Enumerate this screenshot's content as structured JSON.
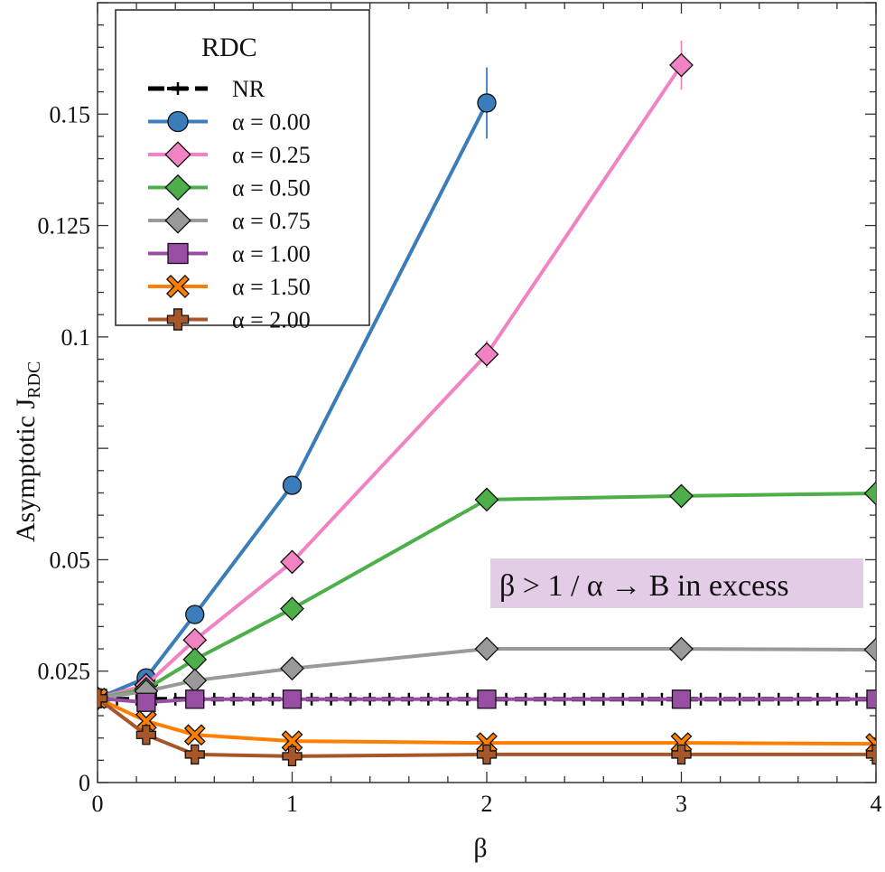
{
  "chart_data": {
    "type": "line",
    "title": "",
    "xlabel": "β",
    "ylabel_main": "Asymptotic  J",
    "ylabel_sub": "RDC",
    "xlim": [
      0,
      4
    ],
    "ylim": [
      0,
      0.175
    ],
    "x_ticks": [
      0,
      1,
      2,
      3,
      4
    ],
    "x_tick_labels": [
      "0",
      "1",
      "2",
      "3",
      "4"
    ],
    "x_minor_step": 0.2,
    "y_ticks": [
      0,
      0.025,
      0.05,
      0.1,
      0.125,
      0.15
    ],
    "y_tick_labels": [
      "0",
      "0.025",
      "0.05",
      "0.1",
      "0.125",
      "0.15"
    ],
    "y_major_step": 0.025,
    "y_minor_step": 0.005,
    "grid": false,
    "legend": {
      "title": "RDC",
      "placement": "top-left"
    },
    "annotation": {
      "text": "β > 1 / α → B in excess",
      "background": "#e3cde6",
      "placement": "center-right"
    },
    "series": [
      {
        "name": "NR",
        "color": "#000000",
        "marker": "plus",
        "dashed": true,
        "x": [
          0,
          0.1,
          0.2,
          0.3,
          0.4,
          0.5,
          0.6,
          0.7,
          0.8,
          0.9,
          1.0,
          1.1,
          1.2,
          1.3,
          1.4,
          1.5,
          1.6,
          1.7,
          1.8,
          1.9,
          2.0,
          2.1,
          2.2,
          2.3,
          2.4,
          2.5,
          2.6,
          2.7,
          2.8,
          2.9,
          3.0,
          3.1,
          3.2,
          3.3,
          3.4,
          3.5,
          3.6,
          3.7,
          3.8,
          3.9,
          4.0
        ],
        "y": [
          0.0187,
          0.0187,
          0.0187,
          0.0187,
          0.0187,
          0.0187,
          0.0187,
          0.0187,
          0.0187,
          0.0187,
          0.0187,
          0.0187,
          0.0187,
          0.0187,
          0.0187,
          0.0187,
          0.0187,
          0.0187,
          0.0187,
          0.0187,
          0.0187,
          0.0187,
          0.0187,
          0.0187,
          0.0187,
          0.0187,
          0.0187,
          0.0187,
          0.0187,
          0.0187,
          0.0187,
          0.0187,
          0.0187,
          0.0187,
          0.0187,
          0.0187,
          0.0187,
          0.0187,
          0.0187,
          0.0187,
          0.0187
        ]
      },
      {
        "name": "α = 0.00",
        "color": "#3a7dba",
        "marker": "circle",
        "x": [
          0,
          0.25,
          0.5,
          1,
          2
        ],
        "y": [
          0.0189,
          0.0235,
          0.0377,
          0.0667,
          0.1525
        ],
        "err": [
          0,
          0.0005,
          0.0008,
          0.0012,
          0.008
        ]
      },
      {
        "name": "α = 0.25",
        "color": "#f283c3",
        "marker": "diamond",
        "x": [
          0,
          0.25,
          0.5,
          1,
          2,
          3
        ],
        "y": [
          0.0189,
          0.0219,
          0.032,
          0.0495,
          0.0961,
          0.161
        ],
        "err": [
          0,
          0.0004,
          0.0006,
          0.001,
          0.003,
          0.0055
        ]
      },
      {
        "name": "α = 0.50",
        "color": "#4daf4a",
        "marker": "diamond",
        "x": [
          0,
          0.25,
          0.5,
          1,
          2,
          3,
          4
        ],
        "y": [
          0.0189,
          0.021,
          0.0276,
          0.039,
          0.0635,
          0.0643,
          0.0649
        ],
        "err": [
          0,
          0.0003,
          0.0004,
          0.0006,
          0.0008,
          0.0008,
          0.0008
        ]
      },
      {
        "name": "α = 0.75",
        "color": "#999999",
        "marker": "diamond",
        "x": [
          0,
          0.25,
          0.5,
          1,
          2,
          3,
          4
        ],
        "y": [
          0.0189,
          0.0205,
          0.0229,
          0.0256,
          0.03,
          0.03,
          0.0298
        ],
        "err": [
          0,
          0.0003,
          0.0004,
          0.0005,
          0.0012,
          0.0012,
          0.0012
        ]
      },
      {
        "name": "α = 1.00",
        "color": "#984ea3",
        "marker": "square",
        "x": [
          0,
          0.25,
          0.5,
          1,
          2,
          3,
          4
        ],
        "y": [
          0.0189,
          0.018,
          0.0187,
          0.0187,
          0.0187,
          0.0187,
          0.0187
        ],
        "err": [
          0,
          0.0006,
          0.0006,
          0.0006,
          0.0006,
          0.0006,
          0.0006
        ]
      },
      {
        "name": "α = 1.50",
        "color": "#ff7f00",
        "marker": "x",
        "x": [
          0,
          0.25,
          0.5,
          1,
          2,
          3,
          4
        ],
        "y": [
          0.0189,
          0.0138,
          0.0107,
          0.0093,
          0.0089,
          0.0089,
          0.0087
        ],
        "err": [
          0,
          0.0005,
          0.0005,
          0.0005,
          0.0005,
          0.0005,
          0.0005
        ]
      },
      {
        "name": "α = 2.00",
        "color": "#a65628",
        "marker": "cross",
        "x": [
          0,
          0.25,
          0.5,
          1,
          2,
          3,
          4
        ],
        "y": [
          0.0189,
          0.0107,
          0.0063,
          0.0059,
          0.0063,
          0.0063,
          0.0063
        ],
        "err": [
          0,
          0.0005,
          0.0005,
          0.0005,
          0.0005,
          0.0005,
          0.0005
        ]
      }
    ]
  }
}
